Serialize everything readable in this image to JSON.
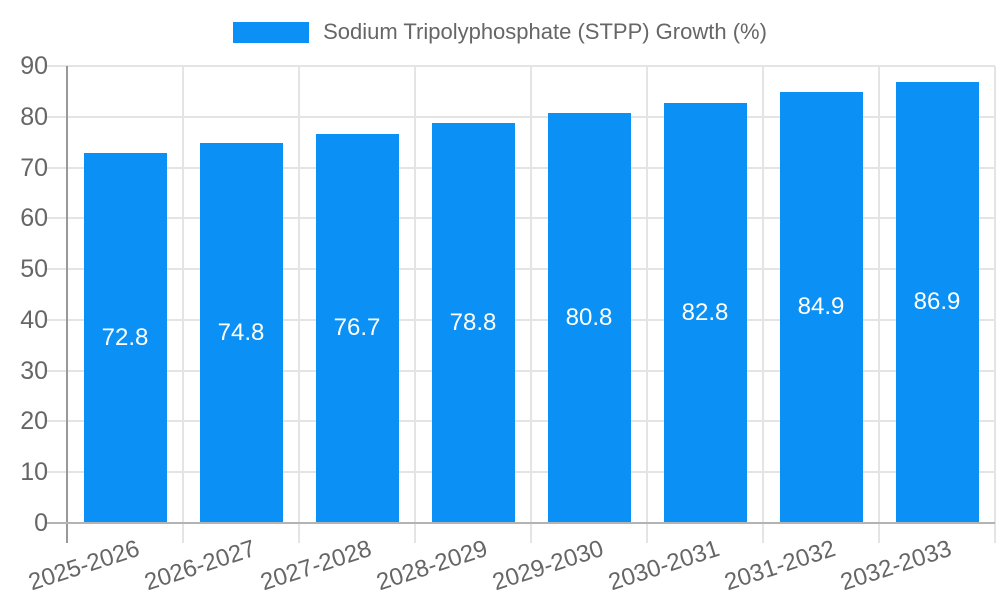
{
  "chart_data": {
    "type": "bar",
    "title": "Sodium Tripolyphosphate (STPP) Growth (%)",
    "categories": [
      "2025-2026",
      "2026-2027",
      "2027-2028",
      "2028-2029",
      "2029-2030",
      "2030-2031",
      "2031-2032",
      "2032-2033"
    ],
    "values": [
      72.8,
      74.8,
      76.7,
      78.8,
      80.8,
      82.8,
      84.9,
      86.9
    ],
    "value_labels": [
      "72.8",
      "74.8",
      "76.7",
      "78.8",
      "80.8",
      "82.8",
      "84.9",
      "86.9"
    ],
    "xlabel": "",
    "ylabel": "",
    "ylim": [
      0,
      90
    ],
    "ytick_step": 10,
    "yticks": [
      "0",
      "10",
      "20",
      "30",
      "40",
      "50",
      "60",
      "70",
      "80",
      "90"
    ],
    "grid": true,
    "legend_position": "top-center",
    "colors": {
      "bar": "#0B90F5",
      "bar_label": "#FFFFFF",
      "axis_text": "#666666",
      "grid_line": "#E4E4E4",
      "axis_line": "#999999",
      "bottom_line": "#B3B3B3",
      "background": "#FFFFFF"
    }
  }
}
